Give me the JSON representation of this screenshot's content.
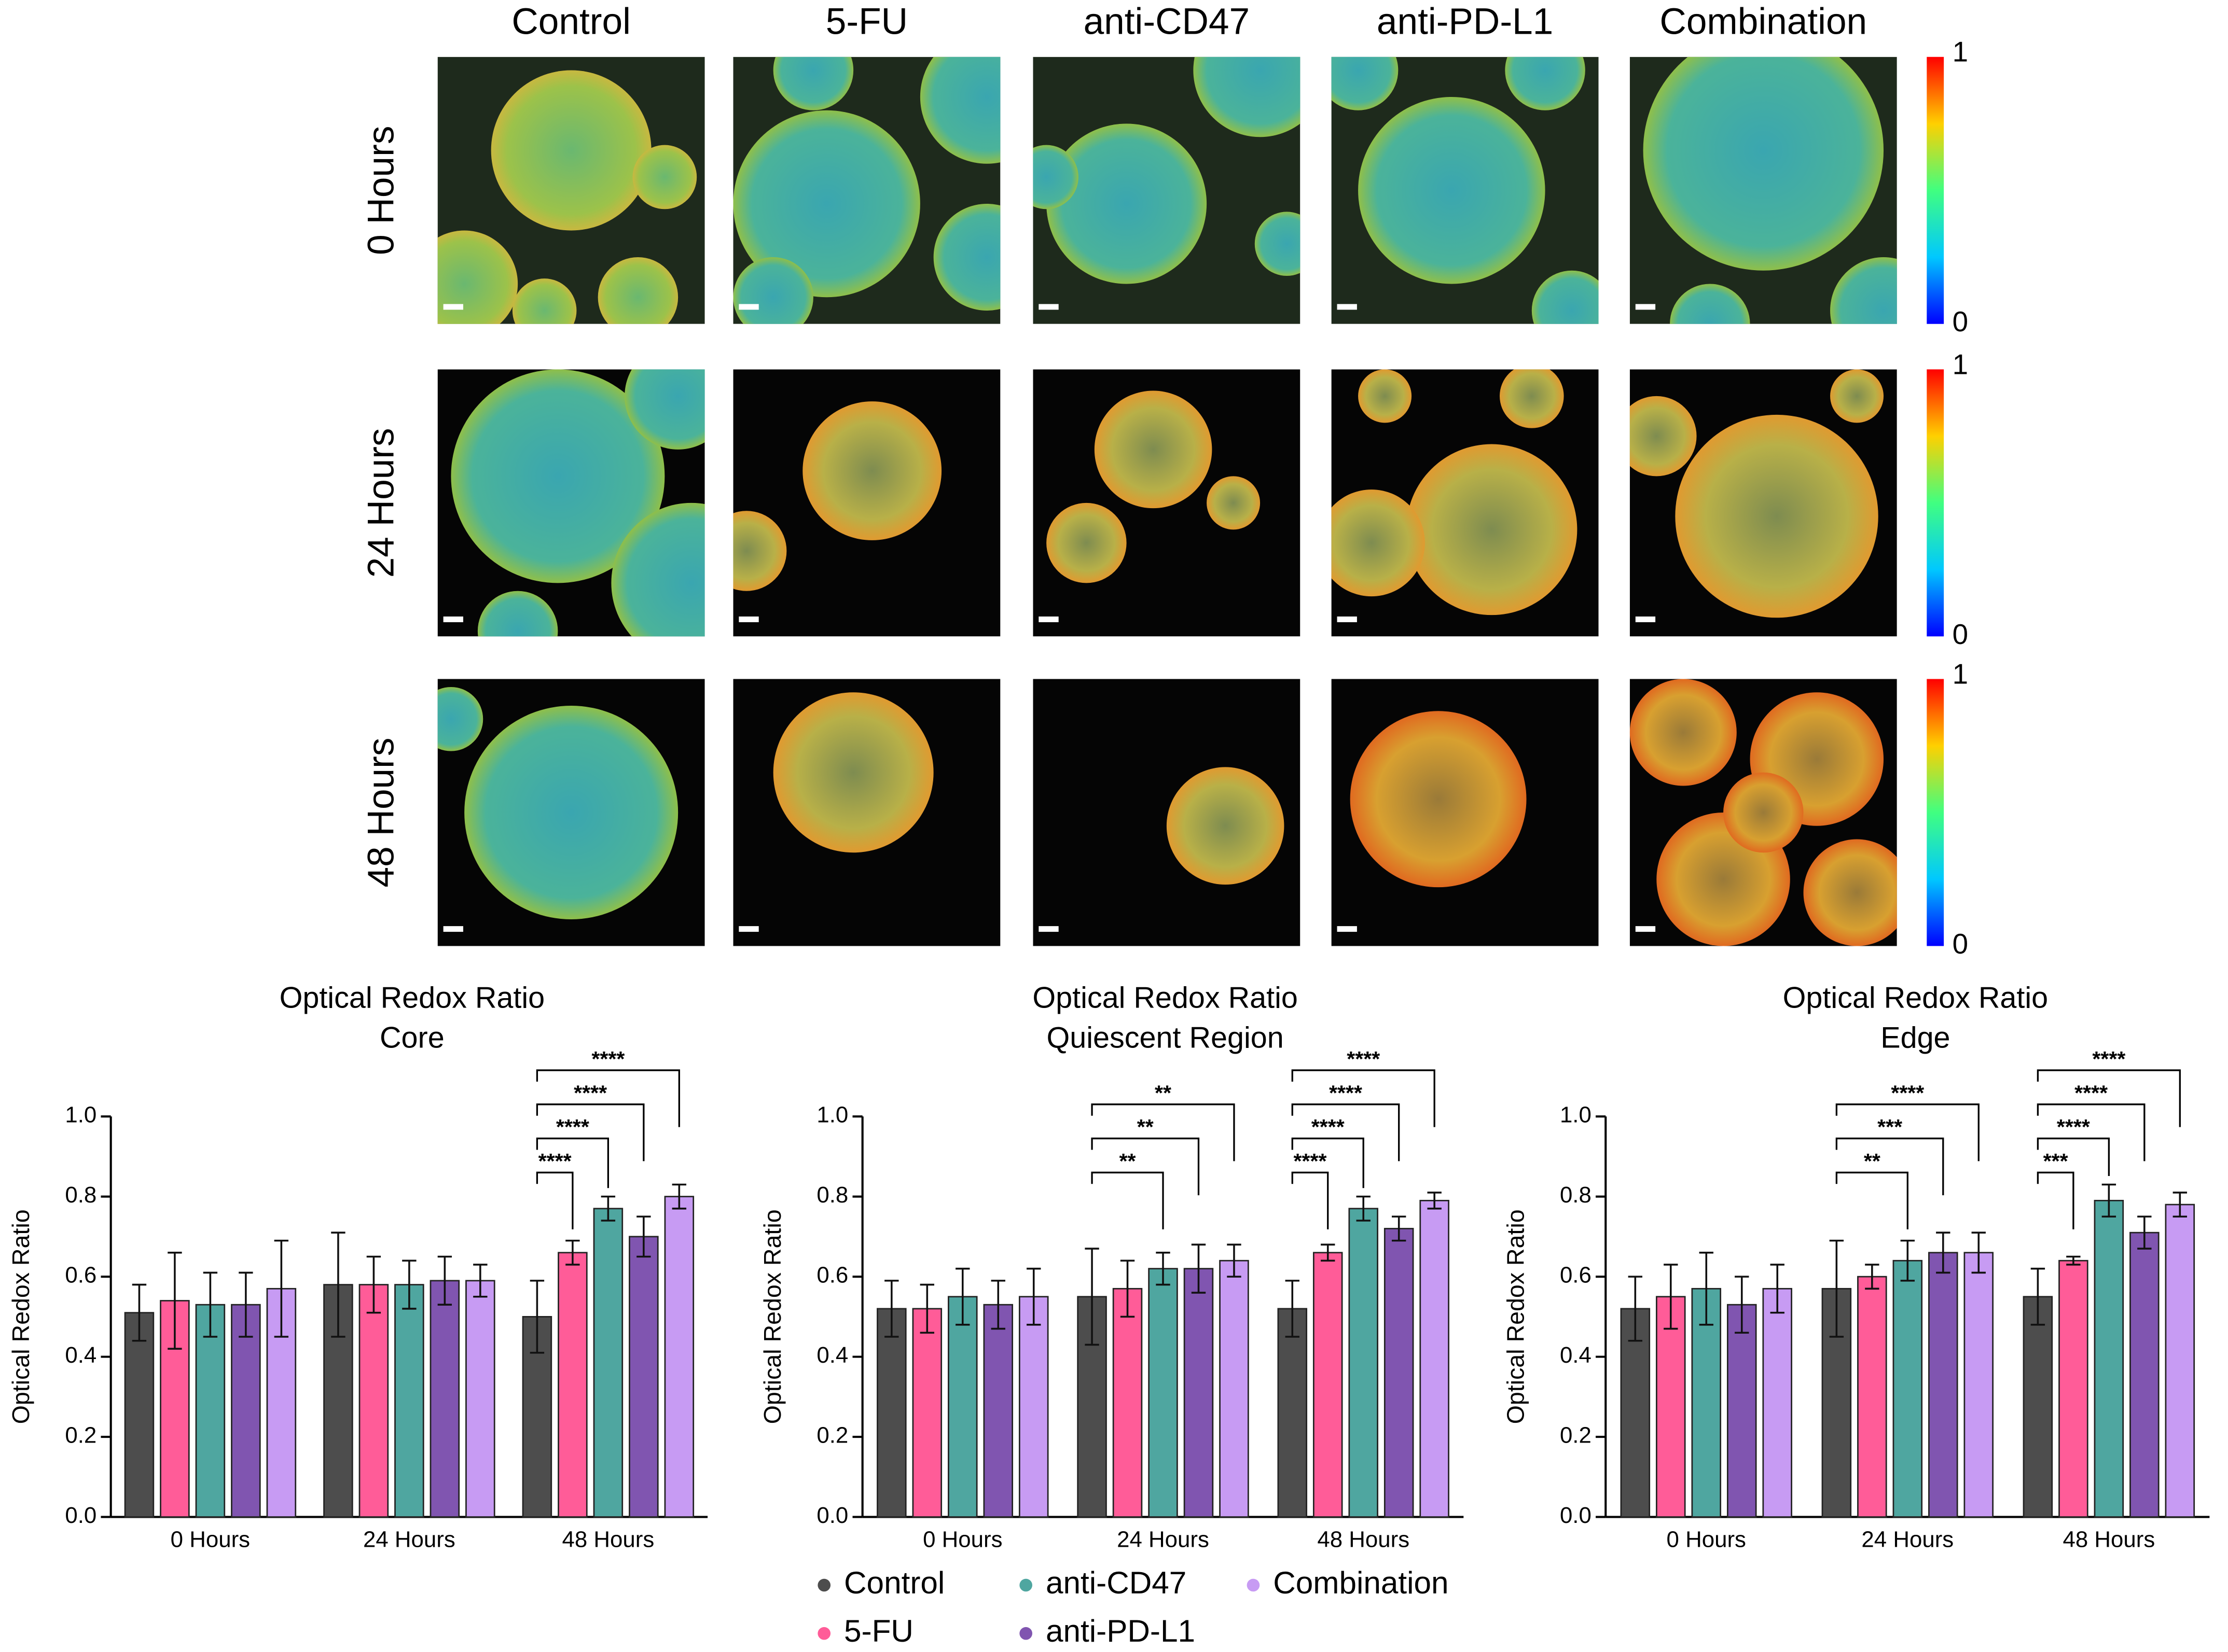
{
  "image_panel": {
    "columns": [
      "Control",
      "5-FU",
      "anti-CD47",
      "anti-PD-L1",
      "Combination"
    ],
    "rows": [
      "0 Hours",
      "24 Hours",
      "48 Hours"
    ],
    "colorbar_max": 1,
    "colorbar_min": 0
  },
  "chart_data": [
    {
      "type": "bar",
      "title": "Optical Redox Ratio",
      "subtitle": "Core",
      "y_label": "Optical Redox Ratio",
      "categories": [
        "0 Hours",
        "24 Hours",
        "48 Hours"
      ],
      "series": [
        {
          "name": "Control",
          "color": "#4d4d4d",
          "values": [
            0.51,
            0.58,
            0.5
          ],
          "errors": [
            0.07,
            0.13,
            0.09
          ]
        },
        {
          "name": "5-FU",
          "color": "#ff5c98",
          "values": [
            0.54,
            0.58,
            0.66
          ],
          "errors": [
            0.12,
            0.07,
            0.03
          ]
        },
        {
          "name": "anti-CD47",
          "color": "#4fa6a0",
          "values": [
            0.53,
            0.58,
            0.77
          ],
          "errors": [
            0.08,
            0.06,
            0.03
          ]
        },
        {
          "name": "anti-PD-L1",
          "color": "#8055b0",
          "values": [
            0.53,
            0.59,
            0.7
          ],
          "errors": [
            0.08,
            0.06,
            0.05
          ]
        },
        {
          "name": "Combination",
          "color": "#c79bf3",
          "values": [
            0.57,
            0.59,
            0.8
          ],
          "errors": [
            0.12,
            0.04,
            0.03
          ]
        }
      ],
      "annotations": [
        {
          "category": "48 Hours",
          "series": "5-FU",
          "label": "****"
        },
        {
          "category": "48 Hours",
          "series": "anti-CD47",
          "label": "****"
        },
        {
          "category": "48 Hours",
          "series": "anti-PD-L1",
          "label": "****"
        },
        {
          "category": "48 Hours",
          "series": "Combination",
          "label": "****"
        }
      ],
      "ylim": [
        0,
        1
      ],
      "yticks": [
        {
          "value": 0,
          "label": "0.0"
        },
        0.2,
        0.4,
        0.6,
        0.8,
        {
          "value": 1,
          "label": "1.0"
        }
      ],
      "grid": false
    },
    {
      "type": "bar",
      "title": "Optical Redox Ratio",
      "subtitle": "Quiescent Region",
      "y_label": "Optical Redox Ratio",
      "categories": [
        "0 Hours",
        "24 Hours",
        "48 Hours"
      ],
      "series": [
        {
          "name": "Control",
          "color": "#4d4d4d",
          "values": [
            0.52,
            0.55,
            0.52
          ],
          "errors": [
            0.07,
            0.12,
            0.07
          ]
        },
        {
          "name": "5-FU",
          "color": "#ff5c98",
          "values": [
            0.52,
            0.57,
            0.66
          ],
          "errors": [
            0.06,
            0.07,
            0.02
          ]
        },
        {
          "name": "anti-CD47",
          "color": "#4fa6a0",
          "values": [
            0.55,
            0.62,
            0.77
          ],
          "errors": [
            0.07,
            0.04,
            0.03
          ]
        },
        {
          "name": "anti-PD-L1",
          "color": "#8055b0",
          "values": [
            0.53,
            0.62,
            0.72
          ],
          "errors": [
            0.06,
            0.06,
            0.03
          ]
        },
        {
          "name": "Combination",
          "color": "#c79bf3",
          "values": [
            0.55,
            0.64,
            0.79
          ],
          "errors": [
            0.07,
            0.04,
            0.02
          ]
        }
      ],
      "annotations": [
        {
          "category": "24 Hours",
          "series": "anti-CD47",
          "label": "**"
        },
        {
          "category": "24 Hours",
          "series": "anti-PD-L1",
          "label": "**"
        },
        {
          "category": "24 Hours",
          "series": "Combination",
          "label": "**"
        },
        {
          "category": "48 Hours",
          "series": "5-FU",
          "label": "****"
        },
        {
          "category": "48 Hours",
          "series": "anti-CD47",
          "label": "****"
        },
        {
          "category": "48 Hours",
          "series": "anti-PD-L1",
          "label": "****"
        },
        {
          "category": "48 Hours",
          "series": "Combination",
          "label": "****"
        }
      ],
      "ylim": [
        0,
        1
      ],
      "yticks": [
        {
          "value": 0,
          "label": "0.0"
        },
        0.2,
        0.4,
        0.6,
        0.8,
        {
          "value": 1,
          "label": "1.0"
        }
      ],
      "grid": false,
      "legend": "below"
    },
    {
      "type": "bar",
      "title": "Optical Redox Ratio",
      "subtitle": "Edge",
      "y_label": "Optical Redox Ratio",
      "categories": [
        "0 Hours",
        "24 Hours",
        "48 Hours"
      ],
      "series": [
        {
          "name": "Control",
          "color": "#4d4d4d",
          "values": [
            0.52,
            0.57,
            0.55
          ],
          "errors": [
            0.08,
            0.12,
            0.07
          ]
        },
        {
          "name": "5-FU",
          "color": "#ff5c98",
          "values": [
            0.55,
            0.6,
            0.64
          ],
          "errors": [
            0.08,
            0.03,
            0.01
          ]
        },
        {
          "name": "anti-CD47",
          "color": "#4fa6a0",
          "values": [
            0.57,
            0.64,
            0.79
          ],
          "errors": [
            0.09,
            0.05,
            0.04
          ]
        },
        {
          "name": "anti-PD-L1",
          "color": "#8055b0",
          "values": [
            0.53,
            0.66,
            0.71
          ],
          "errors": [
            0.07,
            0.05,
            0.04
          ]
        },
        {
          "name": "Combination",
          "color": "#c79bf3",
          "values": [
            0.57,
            0.66,
            0.78
          ],
          "errors": [
            0.06,
            0.05,
            0.03
          ]
        }
      ],
      "annotations": [
        {
          "category": "24 Hours",
          "series": "anti-CD47",
          "label": "**"
        },
        {
          "category": "24 Hours",
          "series": "anti-PD-L1",
          "label": "***"
        },
        {
          "category": "24 Hours",
          "series": "Combination",
          "label": "****"
        },
        {
          "category": "48 Hours",
          "series": "5-FU",
          "label": "***"
        },
        {
          "category": "48 Hours",
          "series": "anti-CD47",
          "label": "****"
        },
        {
          "category": "48 Hours",
          "series": "anti-PD-L1",
          "label": "****"
        },
        {
          "category": "48 Hours",
          "series": "Combination",
          "label": "****"
        }
      ],
      "ylim": [
        0,
        1
      ],
      "yticks": [
        {
          "value": 0,
          "label": "0.0"
        },
        0.2,
        0.4,
        0.6,
        0.8,
        {
          "value": 1,
          "label": "1.0"
        }
      ],
      "grid": false
    }
  ]
}
